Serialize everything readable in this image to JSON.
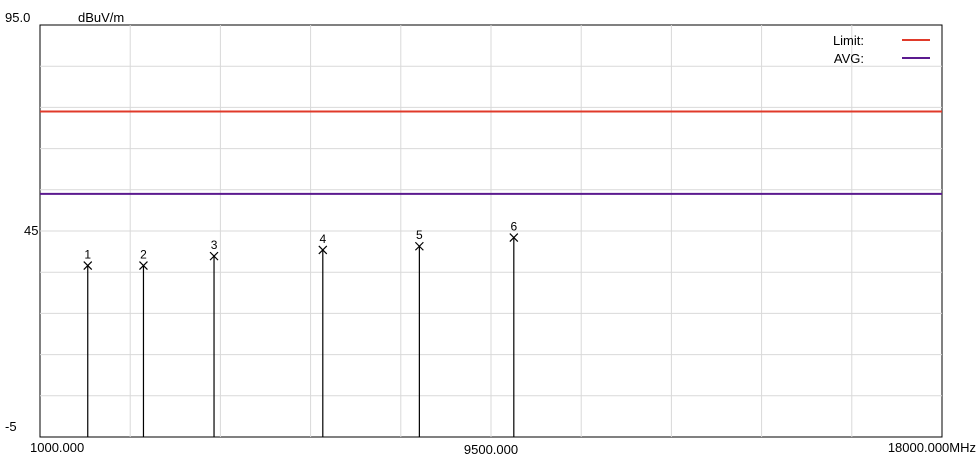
{
  "chart_data": {
    "type": "line",
    "unit_label": "dBuV/m",
    "ylim": [
      -5,
      95
    ],
    "xlim": [
      1000,
      18000
    ],
    "y_tick_labels": [
      {
        "value": 95,
        "label": "95.0"
      },
      {
        "value": 45,
        "label": "45"
      },
      {
        "value": -5,
        "label": "-5"
      }
    ],
    "x_tick_labels": [
      {
        "value": 1000,
        "label": "1000.000"
      },
      {
        "value": 9500,
        "label": "9500.000"
      },
      {
        "value": 18000,
        "label": "18000.000MHz"
      }
    ],
    "grid": true,
    "legend_position": "top-right",
    "series": [
      {
        "name": "Limit:",
        "color": "#e03a2a",
        "x": [
          1000,
          18000
        ],
        "y": [
          74,
          74
        ]
      },
      {
        "name": "AVG:",
        "color": "#5b1a8f",
        "x": [
          1000,
          18000
        ],
        "y": [
          54,
          54
        ]
      }
    ],
    "markers": {
      "color": "#000000",
      "points": [
        {
          "label": "1",
          "x": 1900,
          "y": 36.6
        },
        {
          "label": "2",
          "x": 2950,
          "y": 36.6
        },
        {
          "label": "3",
          "x": 4280,
          "y": 38.9
        },
        {
          "label": "4",
          "x": 6330,
          "y": 40.4
        },
        {
          "label": "5",
          "x": 8150,
          "y": 41.3
        },
        {
          "label": "6",
          "x": 9930,
          "y": 43.4
        }
      ]
    }
  }
}
